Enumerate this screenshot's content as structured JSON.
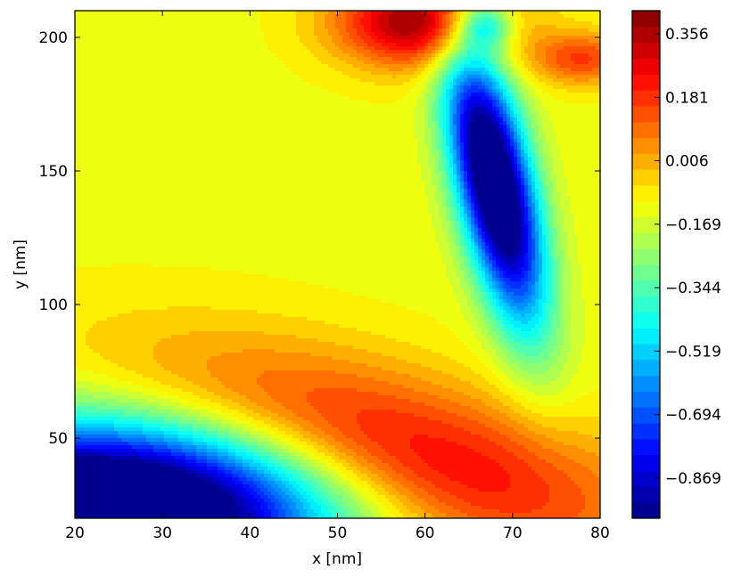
{
  "chart_data": {
    "type": "heatmap",
    "subtype": "filled-contour",
    "colormap": "jet",
    "xlabel": "x [nm]",
    "ylabel": "y [nm]",
    "xlim": [
      20,
      80
    ],
    "ylim": [
      20,
      210
    ],
    "x_ticks": [
      20,
      30,
      40,
      50,
      60,
      70,
      80
    ],
    "y_ticks": [
      50,
      100,
      150,
      200
    ],
    "x_tick_labels": [
      "20",
      "30",
      "40",
      "50",
      "60",
      "70",
      "80"
    ],
    "y_tick_labels": [
      "50",
      "100",
      "150",
      "200"
    ],
    "grid": false,
    "colorbar": {
      "min": -0.98,
      "max": 0.42,
      "levels": 32,
      "ticks": [
        0.356,
        0.181,
        0.006,
        -0.169,
        -0.344,
        -0.519,
        -0.694,
        -0.869
      ],
      "tick_labels": [
        "0.356",
        "0.181",
        "0.006",
        "−0.169",
        "−0.344",
        "−0.519",
        "−0.694",
        "−0.869"
      ]
    },
    "features": [
      {
        "x": 55,
        "y": 45,
        "amp": 0.58,
        "sx": 19,
        "sy": 26,
        "rho": -0.55
      },
      {
        "x": 68,
        "y": 145,
        "amp": -1.08,
        "sx": 3.8,
        "sy": 36,
        "rho": -0.6
      },
      {
        "x": 60,
        "y": 206,
        "amp": 0.55,
        "sx": 7,
        "sy": 12,
        "rho": 0
      },
      {
        "x": 78,
        "y": 192,
        "amp": 0.28,
        "sx": 4,
        "sy": 7,
        "rho": 0
      },
      {
        "x": 20,
        "y": 20,
        "amp": -1.35,
        "sx": 22,
        "sy": 25,
        "rho": 0.25
      },
      {
        "x": 67,
        "y": 205,
        "amp": -0.45,
        "sx": 2.3,
        "sy": 7,
        "rho": 0
      }
    ],
    "baseline": -0.12
  }
}
